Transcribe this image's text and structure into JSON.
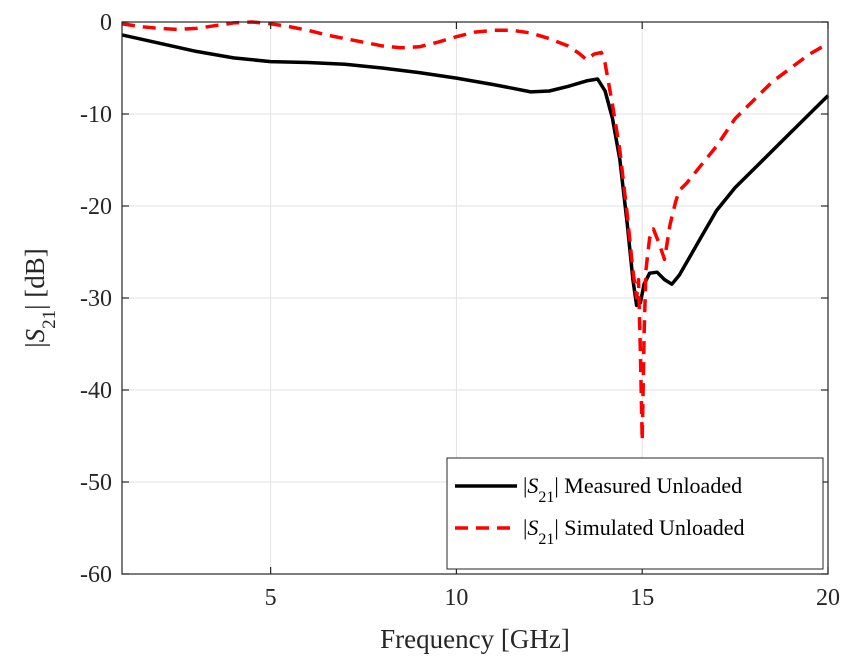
{
  "chart_data": {
    "type": "line",
    "title": "",
    "xlabel": "Frequency [GHz]",
    "ylabel_parts": {
      "pre": "|",
      "sym": "S",
      "sub": "21",
      "post": "| [dB]"
    },
    "xlim": [
      1,
      20
    ],
    "ylim": [
      -60,
      0
    ],
    "xticks": [
      5,
      10,
      15,
      20
    ],
    "yticks": [
      0,
      -10,
      -20,
      -30,
      -40,
      -50,
      -60
    ],
    "grid": true,
    "legend_position": "bottom-right",
    "series": [
      {
        "legend_pre": "|",
        "legend_sym": "S",
        "legend_sub": "21",
        "legend_post": "| Measured Unloaded",
        "color": "#000000",
        "dash": "solid",
        "x": [
          1,
          2,
          3,
          4,
          5,
          6,
          7,
          8,
          9,
          10,
          11,
          11.5,
          12,
          12.5,
          13,
          13.5,
          13.8,
          14.0,
          14.2,
          14.4,
          14.6,
          14.75,
          14.85,
          14.95,
          15.05,
          15.2,
          15.4,
          15.6,
          15.8,
          16.0,
          16.5,
          17.0,
          17.5,
          18.0,
          18.5,
          19.0,
          19.5,
          20.0
        ],
        "y": [
          -1.4,
          -2.3,
          -3.2,
          -3.9,
          -4.3,
          -4.4,
          -4.6,
          -5.0,
          -5.5,
          -6.1,
          -6.8,
          -7.2,
          -7.6,
          -7.5,
          -7.0,
          -6.4,
          -6.2,
          -7.5,
          -10.5,
          -15.0,
          -22.0,
          -28.0,
          -30.8,
          -30.5,
          -28.5,
          -27.3,
          -27.2,
          -28.0,
          -28.5,
          -27.5,
          -24.0,
          -20.5,
          -18.0,
          -16.0,
          -14.0,
          -12.0,
          -10.0,
          -8.0
        ]
      },
      {
        "legend_pre": "|",
        "legend_sym": "S",
        "legend_sub": "21",
        "legend_post": "| Simulated Unloaded",
        "color": "#ff0000",
        "dash": "dashed",
        "x": [
          1,
          1.5,
          2,
          2.5,
          3,
          3.5,
          4,
          4.5,
          5,
          5.5,
          6,
          6.5,
          7,
          7.5,
          8,
          8.5,
          9,
          9.5,
          10,
          10.5,
          11,
          11.5,
          12,
          12.5,
          13,
          13.3,
          13.5,
          13.7,
          13.9,
          14.0,
          14.2,
          14.4,
          14.6,
          14.75,
          14.85,
          14.9,
          14.95,
          15.0,
          15.05,
          15.1,
          15.2,
          15.3,
          15.45,
          15.6,
          15.75,
          15.9,
          16.0,
          16.2,
          16.5,
          17.0,
          17.5,
          18.0,
          18.5,
          19.0,
          19.5,
          19.8,
          20.0
        ],
        "y": [
          -0.2,
          -0.5,
          -0.7,
          -0.8,
          -0.7,
          -0.4,
          -0.1,
          0.0,
          -0.2,
          -0.5,
          -0.9,
          -1.4,
          -1.8,
          -2.2,
          -2.6,
          -2.8,
          -2.7,
          -2.2,
          -1.6,
          -1.1,
          -0.9,
          -0.9,
          -1.2,
          -1.8,
          -2.6,
          -3.4,
          -4.1,
          -3.5,
          -3.3,
          -4.5,
          -9.0,
          -14.0,
          -21.0,
          -27.0,
          -30.0,
          -28.0,
          -36.0,
          -45.5,
          -34.0,
          -27.0,
          -23.5,
          -22.5,
          -24.0,
          -25.8,
          -22.0,
          -19.5,
          -18.3,
          -17.5,
          -16.0,
          -13.5,
          -10.5,
          -8.5,
          -6.5,
          -5.0,
          -3.5,
          -2.8,
          -2.5
        ]
      }
    ]
  }
}
